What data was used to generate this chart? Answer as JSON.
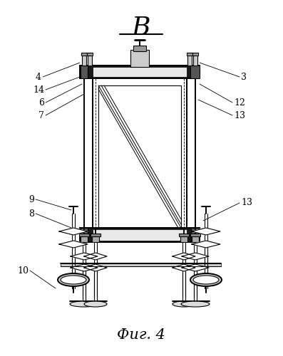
{
  "bg_color": "#ffffff",
  "line_color": "#000000",
  "title_letter": "B",
  "caption": "Фиг. 4",
  "lw": 0.8,
  "lw2": 1.4,
  "lw3": 2.0
}
